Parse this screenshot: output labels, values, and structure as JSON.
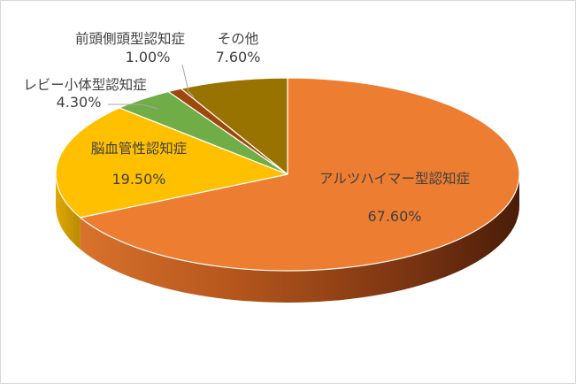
{
  "chart_data": {
    "type": "pie",
    "style": "3d",
    "categories": [
      "アルツハイマー型認知症",
      "脳血管性認知症",
      "レビー小体型認知症",
      "前頭側頭型認知症",
      "その他"
    ],
    "values": [
      67.6,
      19.5,
      4.3,
      1.0,
      7.6
    ],
    "value_labels": [
      "67.60%",
      "19.50%",
      "4.30%",
      "1.00%",
      "7.60%"
    ],
    "colors": [
      "#ED7D31",
      "#FFC000",
      "#70AD47",
      "#9E480E",
      "#997300"
    ],
    "title": "",
    "legend": "none"
  }
}
